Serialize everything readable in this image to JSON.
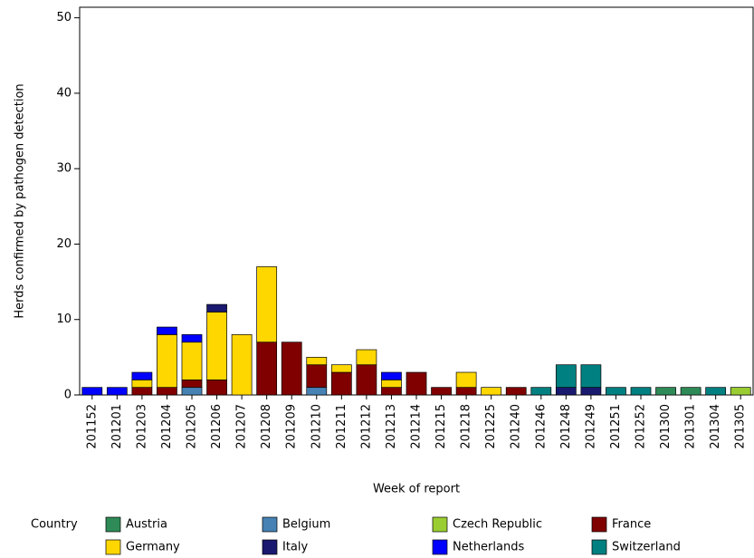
{
  "chart_data": {
    "type": "stacked-bar",
    "y_label": "Herds confirmed by pathogen detection",
    "x_label": "Week of report",
    "legend_title": "Country",
    "categories": [
      "201152",
      "201201",
      "201203",
      "201204",
      "201205",
      "201206",
      "201207",
      "201208",
      "201209",
      "201210",
      "201211",
      "201212",
      "201213",
      "201214",
      "201215",
      "201218",
      "201225",
      "201240",
      "201246",
      "201248",
      "201249",
      "201251",
      "201252",
      "201300",
      "201301",
      "201304",
      "201305"
    ],
    "series": [
      {
        "name": "Austria",
        "color": "#2e8b57",
        "values": [
          0,
          0,
          0,
          0,
          0,
          0,
          0,
          0,
          0,
          0,
          0,
          0,
          0,
          0,
          0,
          0,
          0,
          0,
          0,
          0,
          0,
          0,
          0,
          1,
          1,
          0,
          0
        ]
      },
      {
        "name": "Belgium",
        "color": "#4682b4",
        "values": [
          0,
          0,
          0,
          0,
          1,
          0,
          0,
          0,
          0,
          1,
          0,
          0,
          0,
          0,
          0,
          0,
          0,
          0,
          0,
          0,
          0,
          0,
          0,
          0,
          0,
          0,
          0
        ]
      },
      {
        "name": "Czech Republic",
        "color": "#9acd32",
        "values": [
          0,
          0,
          0,
          0,
          0,
          0,
          0,
          0,
          0,
          0,
          0,
          0,
          0,
          0,
          0,
          0,
          0,
          0,
          0,
          0,
          0,
          0,
          0,
          0,
          0,
          0,
          1
        ]
      },
      {
        "name": "France",
        "color": "#800000",
        "values": [
          0,
          0,
          1,
          1,
          1,
          2,
          0,
          7,
          7,
          3,
          3,
          4,
          1,
          3,
          1,
          1,
          0,
          1,
          0,
          0,
          0,
          0,
          0,
          0,
          0,
          0,
          0
        ]
      },
      {
        "name": "Germany",
        "color": "#ffd700",
        "values": [
          0,
          0,
          1,
          7,
          5,
          9,
          8,
          10,
          0,
          1,
          1,
          2,
          1,
          0,
          0,
          2,
          1,
          0,
          0,
          0,
          0,
          0,
          0,
          0,
          0,
          0,
          0
        ]
      },
      {
        "name": "Italy",
        "color": "#191970",
        "values": [
          0,
          0,
          0,
          0,
          0,
          1,
          0,
          0,
          0,
          0,
          0,
          0,
          0,
          0,
          0,
          0,
          0,
          0,
          0,
          1,
          1,
          0,
          0,
          0,
          0,
          0,
          0
        ]
      },
      {
        "name": "Netherlands",
        "color": "#0000ff",
        "values": [
          1,
          1,
          1,
          1,
          1,
          0,
          0,
          0,
          0,
          0,
          0,
          0,
          1,
          0,
          0,
          0,
          0,
          0,
          0,
          0,
          0,
          0,
          0,
          0,
          0,
          0,
          0
        ]
      },
      {
        "name": "Switzerland",
        "color": "#008080",
        "values": [
          0,
          0,
          0,
          0,
          0,
          0,
          0,
          0,
          0,
          0,
          0,
          0,
          0,
          0,
          0,
          0,
          0,
          0,
          1,
          3,
          3,
          1,
          1,
          0,
          0,
          1,
          0
        ]
      }
    ],
    "ylim": [
      0,
      51.4
    ],
    "yticks": [
      0,
      10,
      20,
      30,
      40,
      50
    ]
  }
}
